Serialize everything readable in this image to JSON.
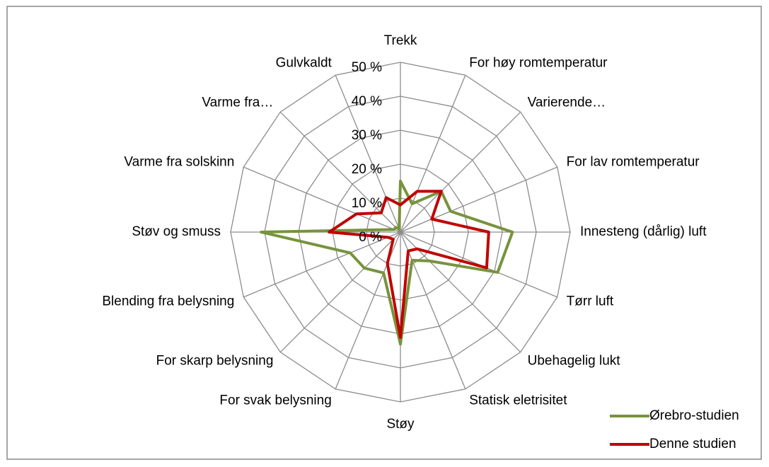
{
  "chart_data": {
    "type": "radar",
    "categories": [
      "Trekk",
      "For høy  romtemperatur",
      "Varierende…",
      "For lav romtemperatur",
      "Innesteng (dårlig) luft",
      "Tørr luft",
      "Ubehagelig lukt",
      "Statisk eletrisitet",
      "Støy",
      "For svak belysning",
      "For skarp belysning",
      "Blending fra belysning",
      "Støv og smuss",
      "Varme fra solskinn",
      "Varme fra…",
      "Gulvkaldt"
    ],
    "series": [
      {
        "name": "Ørebro-studien",
        "color": "#77933c",
        "values": [
          15,
          9,
          17,
          16,
          33,
          31,
          12,
          9,
          33,
          13,
          15,
          16,
          41,
          2,
          2,
          1
        ]
      },
      {
        "name": "Denne studien",
        "color": "#c00000",
        "values": [
          8,
          13,
          17,
          10,
          26,
          27.5,
          7,
          6,
          31,
          10,
          3,
          4,
          21,
          14,
          8,
          11
        ]
      }
    ],
    "ylim": [
      0,
      50
    ],
    "yticks": [
      {
        "value": 0,
        "label": "0 %"
      },
      {
        "value": 10,
        "label": "10 %"
      },
      {
        "value": 20,
        "label": "20 %"
      },
      {
        "value": 30,
        "label": "30 %"
      },
      {
        "value": 40,
        "label": "40 %"
      },
      {
        "value": 50,
        "label": "50 %"
      }
    ],
    "grid": true,
    "legend": "lower right"
  }
}
